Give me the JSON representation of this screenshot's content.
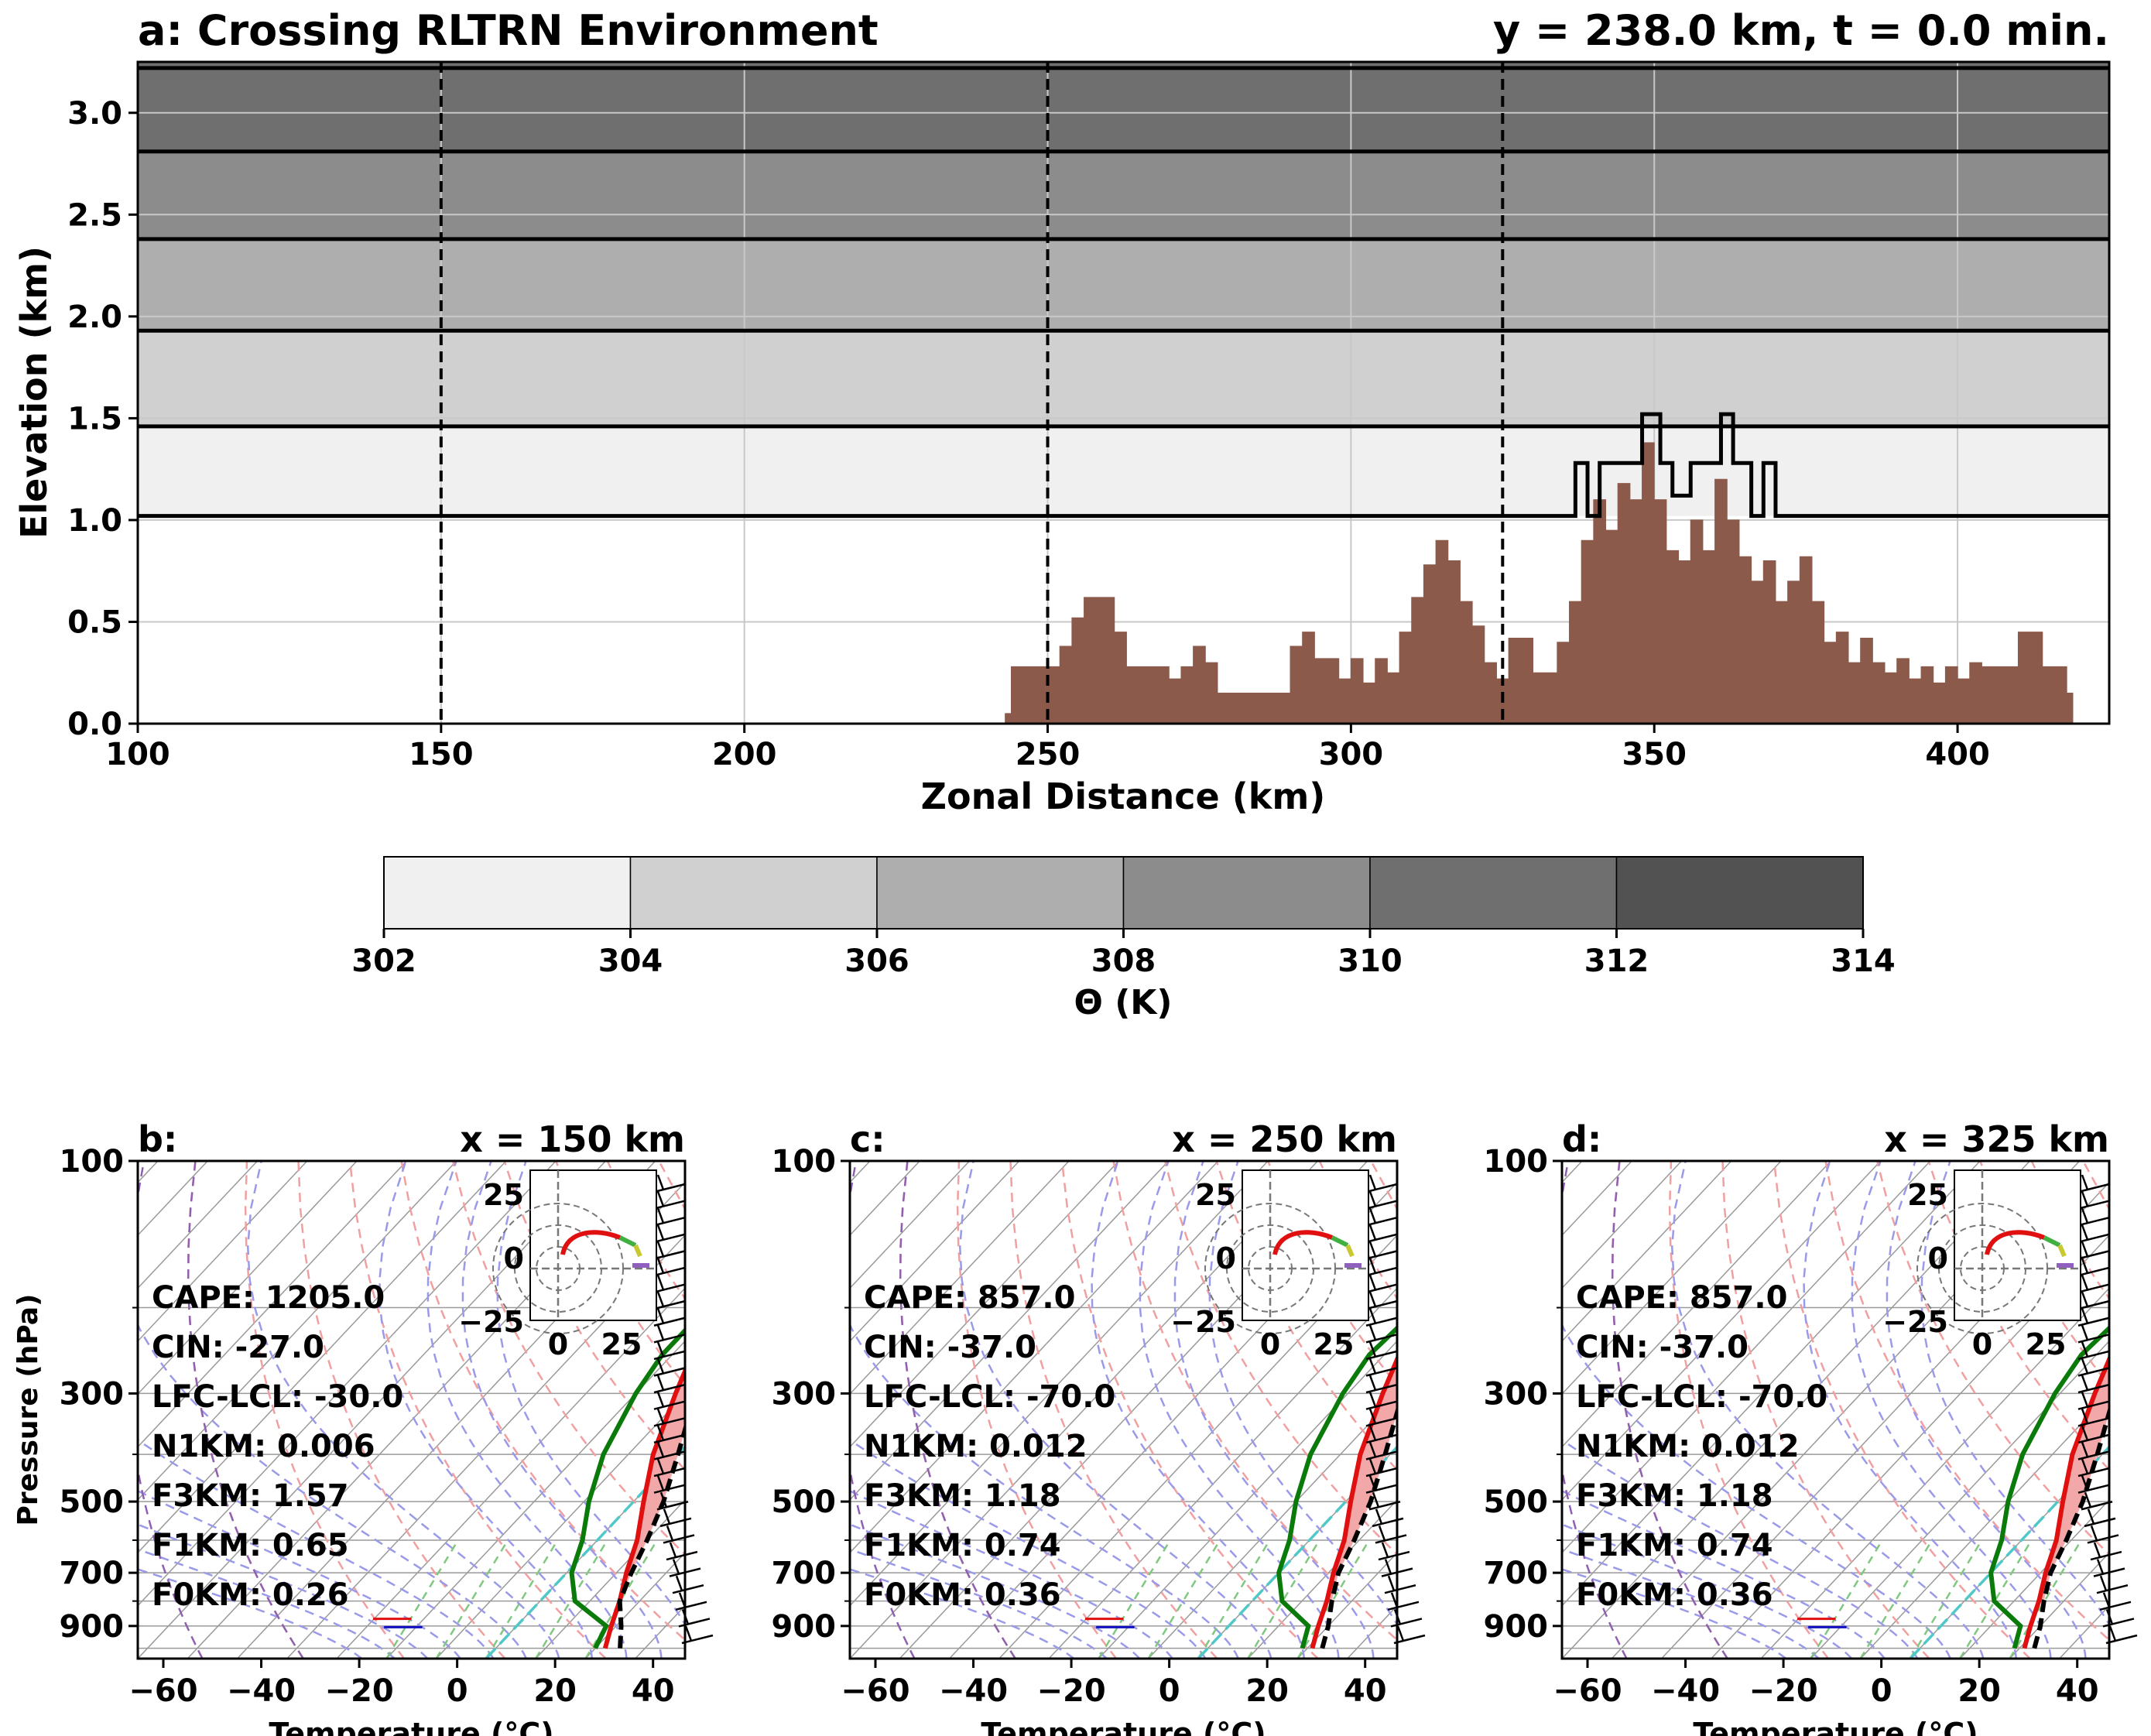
{
  "chart_data": [
    {
      "panel": "a",
      "type": "area",
      "title": "a: Crossing RLTRN Environment",
      "subtitle": "y = 238.0 km, t = 0.0 min.",
      "xlabel": "Zonal Distance (km)",
      "ylabel": "Elevation (km)",
      "xlim": [
        100,
        425
      ],
      "ylim": [
        0,
        3.25
      ],
      "xticks": [
        "100",
        "150",
        "200",
        "250",
        "300",
        "350",
        "400"
      ],
      "yticks": [
        "0.0",
        "0.5",
        "1.0",
        "1.5",
        "2.0",
        "2.5",
        "3.0"
      ],
      "grid": true,
      "dashed_verticals_x": [
        150,
        250,
        325
      ],
      "theta_contours_km": [
        1.02,
        1.46,
        1.93,
        2.38,
        2.81,
        3.22
      ],
      "theta_bands": [
        {
          "from": 0.0,
          "to": 1.02,
          "color": "#ffffff"
        },
        {
          "from": 1.02,
          "to": 1.46,
          "color": "#f0f0f0"
        },
        {
          "from": 1.46,
          "to": 1.93,
          "color": "#d0d0d0"
        },
        {
          "from": 1.93,
          "to": 2.38,
          "color": "#aeaeae"
        },
        {
          "from": 2.38,
          "to": 2.81,
          "color": "#8c8c8c"
        },
        {
          "from": 2.81,
          "to": 3.25,
          "color": "#6f6f6f"
        }
      ],
      "terrain_x": [
        243,
        244,
        252,
        254,
        256,
        261,
        263,
        270,
        272,
        274,
        276,
        278,
        288,
        290,
        292,
        294,
        298,
        300,
        302,
        304,
        306,
        308,
        310,
        312,
        314,
        316,
        318,
        320,
        322,
        324,
        326,
        330,
        334,
        336,
        338,
        340,
        342,
        344,
        346,
        348,
        350,
        352,
        354,
        356,
        358,
        360,
        362,
        364,
        366,
        368,
        370,
        372,
        374,
        376,
        378,
        380,
        382,
        384,
        386,
        388,
        390,
        392,
        394,
        396,
        398,
        400,
        402,
        404,
        408,
        410,
        412,
        414,
        416,
        418,
        419
      ],
      "terrain_km": [
        0.05,
        0.28,
        0.38,
        0.52,
        0.62,
        0.45,
        0.28,
        0.22,
        0.28,
        0.38,
        0.3,
        0.15,
        0.15,
        0.38,
        0.45,
        0.32,
        0.22,
        0.32,
        0.2,
        0.32,
        0.25,
        0.45,
        0.62,
        0.78,
        0.9,
        0.8,
        0.6,
        0.48,
        0.3,
        0.22,
        0.42,
        0.25,
        0.4,
        0.6,
        0.9,
        1.1,
        0.95,
        1.18,
        1.1,
        1.38,
        1.1,
        0.85,
        0.8,
        1.0,
        0.85,
        1.2,
        1.0,
        0.82,
        0.7,
        0.8,
        0.6,
        0.7,
        0.82,
        0.6,
        0.4,
        0.45,
        0.3,
        0.42,
        0.3,
        0.25,
        0.32,
        0.22,
        0.28,
        0.2,
        0.28,
        0.22,
        0.3,
        0.28,
        0.28,
        0.45,
        0.45,
        0.28,
        0.28,
        0.15,
        0.05
      ],
      "colorbar": {
        "label": "Θ (K)",
        "ticks": [
          "302",
          "304",
          "306",
          "308",
          "310",
          "312",
          "314"
        ],
        "colors": [
          "#f0f0f0",
          "#d0d0d0",
          "#aeaeae",
          "#8c8c8c",
          "#6f6f6f",
          "#525252"
        ]
      }
    },
    {
      "panel": "b",
      "type": "line",
      "title": "b:",
      "subtitle": "x = 150 km",
      "xlabel": "Temperature (°C)",
      "ylabel": "Pressure (hPa)",
      "xticks": [
        "−60",
        "−40",
        "−20",
        "0",
        "20",
        "40"
      ],
      "yticks": [
        "100",
        "300",
        "500",
        "700",
        "900"
      ],
      "annotations": [
        "CAPE: 1205.0",
        "CIN: -27.0",
        "LFC-LCL: -30.0",
        "N1KM: 0.006",
        "F3KM: 1.57",
        "F1KM: 0.65",
        "F0KM: 0.26"
      ],
      "hodograph_ticks_x": [
        "0",
        "25"
      ],
      "hodograph_ticks_y": [
        "25",
        "0",
        "−25"
      ],
      "series_temperature": [
        [
          22,
          1000
        ],
        [
          19,
          900
        ],
        [
          16,
          800
        ],
        [
          12,
          700
        ],
        [
          8,
          600
        ],
        [
          2,
          500
        ],
        [
          -5,
          400
        ],
        [
          -12,
          300
        ],
        [
          -16,
          250
        ],
        [
          -18,
          200
        ],
        [
          -17,
          150
        ],
        [
          -15,
          120
        ],
        [
          -14,
          100
        ]
      ],
      "series_dewpoint": [
        [
          20,
          1000
        ],
        [
          18,
          900
        ],
        [
          7,
          800
        ],
        [
          1,
          700
        ],
        [
          -3,
          600
        ],
        [
          -9,
          500
        ],
        [
          -15,
          400
        ],
        [
          -20,
          300
        ],
        [
          -22,
          250
        ],
        [
          -22,
          200
        ],
        [
          -21,
          150
        ],
        [
          -18,
          120
        ],
        [
          -15,
          100
        ]
      ],
      "series_parcel": [
        [
          25,
          1000
        ],
        [
          21,
          900
        ],
        [
          16,
          800
        ],
        [
          13,
          700
        ],
        [
          10,
          600
        ],
        [
          6,
          500
        ],
        [
          0,
          400
        ],
        [
          -8,
          300
        ],
        [
          -13,
          250
        ],
        [
          -20,
          200
        ],
        [
          -30,
          150
        ],
        [
          -40,
          120
        ],
        [
          -48,
          100
        ]
      ]
    },
    {
      "panel": "c",
      "type": "line",
      "title": "c:",
      "subtitle": "x = 250 km",
      "xlabel": "Temperature (°C)",
      "xticks": [
        "−60",
        "−40",
        "−20",
        "0",
        "20",
        "40"
      ],
      "yticks": [
        "100",
        "300",
        "500",
        "700",
        "900"
      ],
      "annotations": [
        "CAPE: 857.0",
        "CIN: -37.0",
        "LFC-LCL: -70.0",
        "N1KM: 0.012",
        "F3KM: 1.18",
        "F1KM: 0.74",
        "F0KM: 0.36"
      ],
      "hodograph_ticks_x": [
        "0",
        "25"
      ],
      "hodograph_ticks_y": [
        "25",
        "0",
        "−25"
      ],
      "series_temperature": [
        [
          21,
          1000
        ],
        [
          18,
          900
        ],
        [
          15,
          800
        ],
        [
          11,
          700
        ],
        [
          7,
          600
        ],
        [
          1,
          500
        ],
        [
          -6,
          400
        ],
        [
          -13,
          300
        ],
        [
          -17,
          250
        ],
        [
          -18,
          200
        ],
        [
          -16,
          150
        ],
        [
          -15,
          120
        ],
        [
          -14,
          100
        ]
      ],
      "series_dewpoint": [
        [
          19,
          1000
        ],
        [
          16,
          900
        ],
        [
          6,
          800
        ],
        [
          0,
          700
        ],
        [
          -4,
          600
        ],
        [
          -10,
          500
        ],
        [
          -16,
          400
        ],
        [
          -21,
          300
        ],
        [
          -23,
          250
        ],
        [
          -22,
          200
        ],
        [
          -20,
          150
        ],
        [
          -18,
          120
        ],
        [
          -16,
          100
        ]
      ],
      "series_parcel": [
        [
          23,
          1000
        ],
        [
          20,
          900
        ],
        [
          16,
          800
        ],
        [
          12,
          700
        ],
        [
          9,
          600
        ],
        [
          5,
          500
        ],
        [
          -1,
          400
        ],
        [
          -9,
          300
        ],
        [
          -14,
          250
        ],
        [
          -21,
          200
        ],
        [
          -31,
          150
        ],
        [
          -41,
          120
        ],
        [
          -49,
          100
        ]
      ]
    },
    {
      "panel": "d",
      "type": "line",
      "title": "d:",
      "subtitle": "x = 325 km",
      "xlabel": "Temperature (°C)",
      "xticks": [
        "−60",
        "−40",
        "−20",
        "0",
        "20",
        "40"
      ],
      "yticks": [
        "100",
        "300",
        "500",
        "700",
        "900"
      ],
      "annotations": [
        "CAPE: 857.0",
        "CIN: -37.0",
        "LFC-LCL: -70.0",
        "N1KM: 0.012",
        "F3KM: 1.18",
        "F1KM: 0.74",
        "F0KM: 0.36"
      ],
      "hodograph_ticks_x": [
        "0",
        "25"
      ],
      "hodograph_ticks_y": [
        "25",
        "0",
        "−25"
      ],
      "series_temperature": [
        [
          21,
          1000
        ],
        [
          18,
          900
        ],
        [
          15,
          800
        ],
        [
          11,
          700
        ],
        [
          7,
          600
        ],
        [
          1,
          500
        ],
        [
          -6,
          400
        ],
        [
          -13,
          300
        ],
        [
          -17,
          250
        ],
        [
          -18,
          200
        ],
        [
          -16,
          150
        ],
        [
          -15,
          120
        ],
        [
          -14,
          100
        ]
      ],
      "series_dewpoint": [
        [
          19,
          1000
        ],
        [
          16,
          900
        ],
        [
          6,
          800
        ],
        [
          0,
          700
        ],
        [
          -4,
          600
        ],
        [
          -10,
          500
        ],
        [
          -16,
          400
        ],
        [
          -21,
          300
        ],
        [
          -23,
          250
        ],
        [
          -22,
          200
        ],
        [
          -20,
          150
        ],
        [
          -18,
          120
        ],
        [
          -16,
          100
        ]
      ],
      "series_parcel": [
        [
          23,
          1000
        ],
        [
          20,
          900
        ],
        [
          16,
          800
        ],
        [
          12,
          700
        ],
        [
          9,
          600
        ],
        [
          5,
          500
        ],
        [
          -1,
          400
        ],
        [
          -9,
          300
        ],
        [
          -14,
          250
        ],
        [
          -21,
          200
        ],
        [
          -31,
          150
        ],
        [
          -41,
          120
        ],
        [
          -49,
          100
        ]
      ]
    }
  ]
}
